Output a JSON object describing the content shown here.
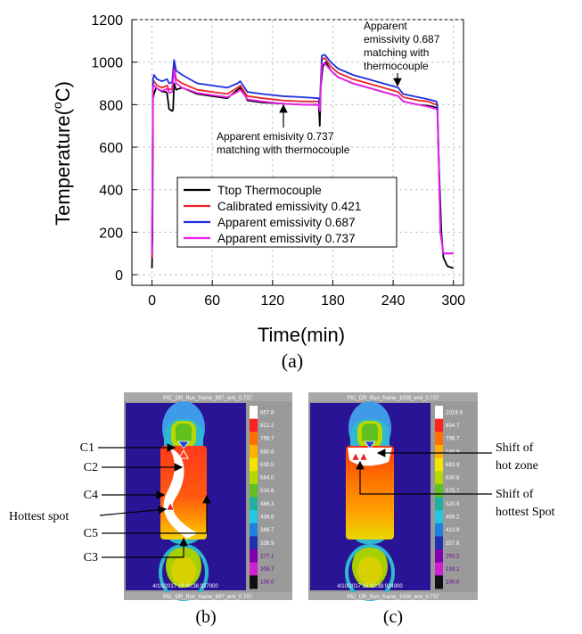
{
  "chart_data": {
    "type": "line",
    "panel_label": "(a)",
    "xlabel": "Time(min)",
    "ylabel": "Temperature(°C)",
    "ylabel_parts": [
      "Temperature(",
      "o",
      "C)"
    ],
    "xlim": [
      -20,
      310
    ],
    "ylim": [
      -50,
      1200
    ],
    "x_ticks": [
      0,
      60,
      120,
      180,
      240,
      300
    ],
    "y_ticks": [
      0,
      200,
      400,
      600,
      800,
      1000,
      1200
    ],
    "grid": true,
    "legend_position": "lower-center",
    "series": [
      {
        "name": "Ttop Thermocouple",
        "color": "#000000",
        "points": [
          [
            0,
            30
          ],
          [
            0.5,
            180
          ],
          [
            1,
            830
          ],
          [
            2,
            850
          ],
          [
            4,
            880
          ],
          [
            7,
            870
          ],
          [
            10,
            862
          ],
          [
            14,
            860
          ],
          [
            15,
            850
          ],
          [
            17,
            780
          ],
          [
            20,
            770
          ],
          [
            21,
            775
          ],
          [
            22,
            900
          ],
          [
            24,
            870
          ],
          [
            30,
            880
          ],
          [
            35,
            870
          ],
          [
            45,
            850
          ],
          [
            60,
            840
          ],
          [
            75,
            830
          ],
          [
            85,
            870
          ],
          [
            88,
            880
          ],
          [
            92,
            850
          ],
          [
            95,
            820
          ],
          [
            110,
            810
          ],
          [
            130,
            805
          ],
          [
            150,
            800
          ],
          [
            166,
            800
          ],
          [
            167,
            700
          ],
          [
            168,
            880
          ],
          [
            170,
            980
          ],
          [
            173,
            1000
          ],
          [
            178,
            960
          ],
          [
            185,
            930
          ],
          [
            200,
            900
          ],
          [
            215,
            880
          ],
          [
            230,
            860
          ],
          [
            245,
            840
          ],
          [
            250,
            815
          ],
          [
            255,
            810
          ],
          [
            265,
            800
          ],
          [
            275,
            795
          ],
          [
            280,
            790
          ],
          [
            283,
            785
          ],
          [
            284,
            780
          ],
          [
            285,
            600
          ],
          [
            288,
            200
          ],
          [
            290,
            80
          ],
          [
            294,
            40
          ],
          [
            300,
            30
          ]
        ]
      },
      {
        "name": "Calibrated emissivity 0.421",
        "color": "#e8242a",
        "points": [
          [
            0,
            80
          ],
          [
            1,
            900
          ],
          [
            2,
            910
          ],
          [
            5,
            890
          ],
          [
            10,
            880
          ],
          [
            15,
            890
          ],
          [
            17,
            870
          ],
          [
            20,
            875
          ],
          [
            22,
            980
          ],
          [
            24,
            920
          ],
          [
            30,
            900
          ],
          [
            45,
            870
          ],
          [
            60,
            860
          ],
          [
            75,
            850
          ],
          [
            85,
            880
          ],
          [
            88,
            890
          ],
          [
            92,
            860
          ],
          [
            95,
            840
          ],
          [
            110,
            830
          ],
          [
            130,
            820
          ],
          [
            150,
            815
          ],
          [
            166,
            815
          ],
          [
            167,
            780
          ],
          [
            169,
            1010
          ],
          [
            172,
            1020
          ],
          [
            178,
            980
          ],
          [
            185,
            950
          ],
          [
            200,
            920
          ],
          [
            215,
            900
          ],
          [
            230,
            880
          ],
          [
            245,
            860
          ],
          [
            250,
            835
          ],
          [
            255,
            830
          ],
          [
            265,
            820
          ],
          [
            275,
            815
          ],
          [
            283,
            800
          ],
          [
            284,
            790
          ],
          [
            285,
            620
          ],
          [
            287,
            200
          ],
          [
            290,
            100
          ],
          [
            300,
            100
          ]
        ]
      },
      {
        "name": "Apparent emissivity 0.687",
        "color": "#1c2fe0",
        "points": [
          [
            0,
            100
          ],
          [
            1,
            920
          ],
          [
            2,
            940
          ],
          [
            5,
            920
          ],
          [
            10,
            910
          ],
          [
            15,
            920
          ],
          [
            17,
            900
          ],
          [
            20,
            905
          ],
          [
            22,
            1010
          ],
          [
            24,
            960
          ],
          [
            30,
            940
          ],
          [
            45,
            900
          ],
          [
            60,
            890
          ],
          [
            75,
            880
          ],
          [
            85,
            900
          ],
          [
            88,
            910
          ],
          [
            92,
            880
          ],
          [
            95,
            860
          ],
          [
            110,
            850
          ],
          [
            130,
            840
          ],
          [
            150,
            835
          ],
          [
            166,
            830
          ],
          [
            167,
            800
          ],
          [
            169,
            1030
          ],
          [
            172,
            1035
          ],
          [
            178,
            1000
          ],
          [
            185,
            970
          ],
          [
            200,
            940
          ],
          [
            215,
            920
          ],
          [
            230,
            900
          ],
          [
            245,
            880
          ],
          [
            250,
            850
          ],
          [
            255,
            845
          ],
          [
            265,
            835
          ],
          [
            275,
            825
          ],
          [
            283,
            815
          ],
          [
            284,
            800
          ],
          [
            285,
            640
          ],
          [
            287,
            200
          ],
          [
            290,
            100
          ],
          [
            300,
            100
          ]
        ]
      },
      {
        "name": "Apparent emissivity 0.737",
        "color": "#f01ef0",
        "points": [
          [
            0,
            100
          ],
          [
            1,
            880
          ],
          [
            2,
            890
          ],
          [
            5,
            875
          ],
          [
            10,
            865
          ],
          [
            15,
            875
          ],
          [
            17,
            855
          ],
          [
            20,
            860
          ],
          [
            22,
            960
          ],
          [
            24,
            900
          ],
          [
            30,
            880
          ],
          [
            45,
            855
          ],
          [
            60,
            845
          ],
          [
            75,
            835
          ],
          [
            85,
            860
          ],
          [
            88,
            870
          ],
          [
            92,
            845
          ],
          [
            95,
            825
          ],
          [
            110,
            815
          ],
          [
            130,
            805
          ],
          [
            150,
            800
          ],
          [
            166,
            798
          ],
          [
            167,
            770
          ],
          [
            169,
            990
          ],
          [
            172,
            995
          ],
          [
            178,
            960
          ],
          [
            185,
            930
          ],
          [
            200,
            900
          ],
          [
            215,
            880
          ],
          [
            230,
            860
          ],
          [
            245,
            840
          ],
          [
            250,
            815
          ],
          [
            255,
            810
          ],
          [
            265,
            800
          ],
          [
            275,
            790
          ],
          [
            283,
            780
          ],
          [
            284,
            770
          ],
          [
            285,
            600
          ],
          [
            287,
            200
          ],
          [
            290,
            100
          ],
          [
            300,
            100
          ]
        ]
      }
    ],
    "annotations": [
      {
        "text": "Apparent emisivity 0.737\nmatching with thermocouple",
        "arrow_to": [
          130,
          795
        ]
      },
      {
        "text": "Apparent\nemissivity 0.687\nmatching with\nthermocouple",
        "arrow_to": [
          245,
          855
        ]
      }
    ]
  },
  "thermal_images": [
    {
      "panel_label": "(b)",
      "header": "PtC_DR_Run_frame_997_emi_0.737",
      "footer": "PtC_DR_Run_frame_997_emi_0.737",
      "timestamp": "4/10/2017 16:40:38.927000",
      "scale_values": [
        "857.8",
        "812.2",
        "756.7",
        "680.6",
        "630.5",
        "584.0",
        "534.6",
        "486.3",
        "439.8",
        "388.7",
        "336.9",
        "277.1",
        "208.7",
        "100.0"
      ],
      "callouts": [
        "C1",
        "C2",
        "C4",
        "Hottest spot",
        "C5",
        "C3"
      ]
    },
    {
      "panel_label": "(c)",
      "header": "PtC_DR_Run_frame_1009_emi_0.737",
      "footer": "PtC_DR_Run_frame_1009_emi_0.737",
      "timestamp": "4/10/2017 16:42:38.924000",
      "scale_values": [
        "1024.9",
        "894.7",
        "796.7",
        "740.9",
        "683.9",
        "630.8",
        "575.7",
        "520.9",
        "469.2",
        "413.9",
        "357.8",
        "293.2",
        "219.1",
        "100.0"
      ],
      "callouts": [
        "Shift of\nhot zone",
        "Shift of\nhottest Spot"
      ]
    }
  ],
  "colors": {
    "thermal_background": "#2a1496",
    "scale": [
      "#ffffff",
      "#ff2020",
      "#ff7000",
      "#ffb000",
      "#f5e600",
      "#b9d800",
      "#60c020",
      "#20b0a0",
      "#20c8e0",
      "#2080e0",
      "#2030b0",
      "#8000b0",
      "#d020d0",
      "#101010"
    ]
  }
}
